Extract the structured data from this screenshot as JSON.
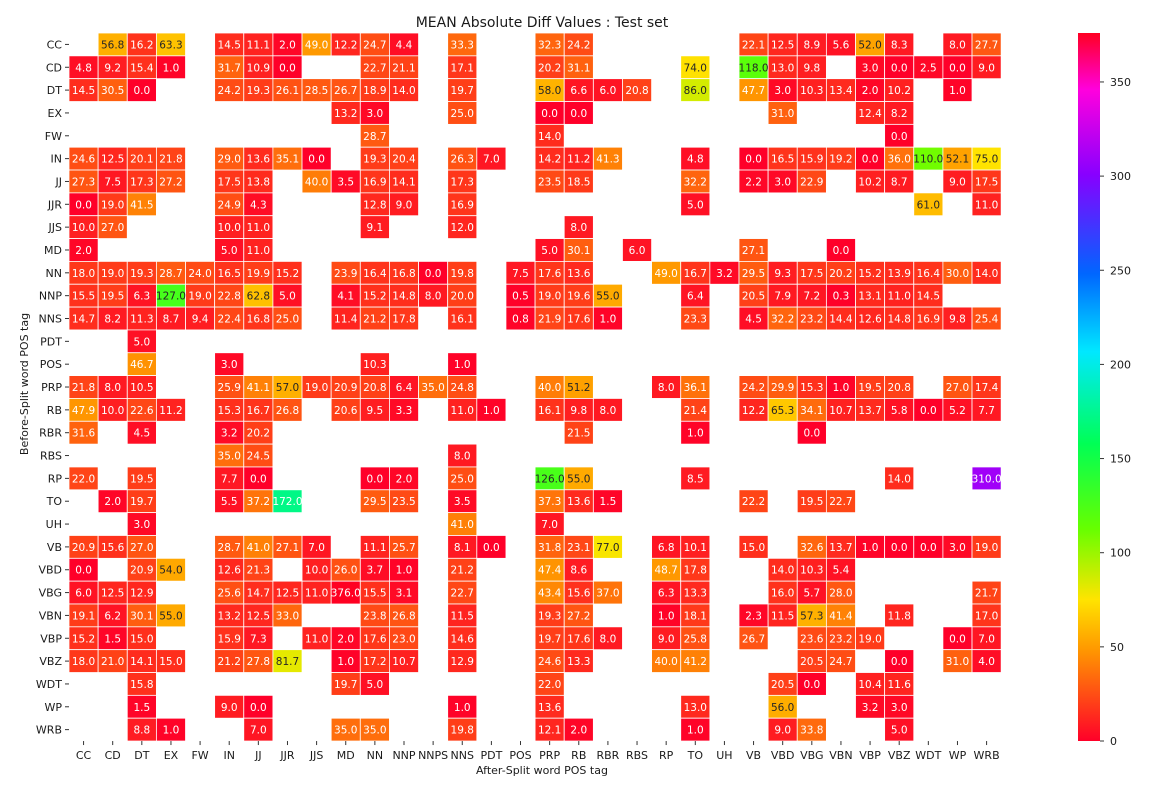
{
  "chart_data": {
    "type": "heatmap",
    "title": "MEAN Absolute Diff Values : Test set",
    "xlabel": "After-Split word POS tag",
    "ylabel": "Before-Split word POS tag",
    "x_categories": [
      "CC",
      "CD",
      "DT",
      "EX",
      "FW",
      "IN",
      "JJ",
      "JJR",
      "JJS",
      "MD",
      "NN",
      "NNP",
      "NNPS",
      "NNS",
      "PDT",
      "POS",
      "PRP",
      "RB",
      "RBR",
      "RBS",
      "RP",
      "TO",
      "UH",
      "VB",
      "VBD",
      "VBG",
      "VBN",
      "VBP",
      "VBZ",
      "WDT",
      "WP",
      "WRB"
    ],
    "y_categories": [
      "CC",
      "CD",
      "DT",
      "EX",
      "FW",
      "IN",
      "JJ",
      "JJR",
      "JJS",
      "MD",
      "NN",
      "NNP",
      "NNS",
      "PDT",
      "POS",
      "PRP",
      "RB",
      "RBR",
      "RBS",
      "RP",
      "TO",
      "UH",
      "VB",
      "VBD",
      "VBG",
      "VBN",
      "VBP",
      "VBZ",
      "WDT",
      "WP",
      "WRB"
    ],
    "colorbar": {
      "colormap": "gist_rainbow",
      "range": [
        0,
        375
      ],
      "ticks": [
        "0",
        "50",
        "100",
        "150",
        "200",
        "250",
        "300",
        "350"
      ]
    },
    "missing_cells": "blank",
    "values": [
      [
        null,
        56.8,
        16.2,
        63.3,
        null,
        14.5,
        11.1,
        2.0,
        49.0,
        12.2,
        24.7,
        4.4,
        null,
        33.3,
        null,
        null,
        32.3,
        24.2,
        null,
        null,
        null,
        null,
        null,
        22.1,
        12.5,
        8.9,
        5.6,
        52.0,
        8.3,
        null,
        8.0,
        27.7
      ],
      [
        4.8,
        9.2,
        15.4,
        1.0,
        null,
        31.7,
        10.9,
        0.0,
        null,
        null,
        22.7,
        21.1,
        null,
        17.1,
        null,
        null,
        20.2,
        31.1,
        null,
        null,
        null,
        74.0,
        null,
        118.0,
        13.0,
        9.8,
        null,
        3.0,
        0.0,
        2.5,
        0.0,
        9.0
      ],
      [
        14.5,
        30.5,
        0.0,
        null,
        null,
        24.2,
        19.3,
        26.1,
        28.5,
        26.7,
        18.9,
        14.0,
        null,
        19.7,
        null,
        null,
        58.0,
        6.6,
        6.0,
        20.8,
        null,
        86.0,
        null,
        47.7,
        3.0,
        10.3,
        13.4,
        2.0,
        10.2,
        null,
        1.0,
        null
      ],
      [
        null,
        null,
        null,
        null,
        null,
        null,
        null,
        null,
        null,
        13.2,
        3.0,
        null,
        null,
        25.0,
        null,
        null,
        0.0,
        0.0,
        null,
        null,
        null,
        null,
        null,
        null,
        31.0,
        null,
        null,
        12.4,
        8.2,
        null,
        null,
        null
      ],
      [
        null,
        null,
        null,
        null,
        null,
        null,
        null,
        null,
        null,
        null,
        28.7,
        null,
        null,
        null,
        null,
        null,
        14.0,
        null,
        null,
        null,
        null,
        null,
        null,
        null,
        null,
        null,
        null,
        null,
        0.0,
        null,
        null,
        null
      ],
      [
        24.6,
        12.5,
        20.1,
        21.8,
        null,
        29.0,
        13.6,
        35.1,
        0.0,
        null,
        19.3,
        20.4,
        null,
        26.3,
        7.0,
        null,
        14.2,
        11.2,
        41.3,
        null,
        null,
        4.8,
        null,
        0.0,
        16.5,
        15.9,
        19.2,
        0.0,
        36.0,
        110.0,
        52.1,
        75.0
      ],
      [
        27.3,
        7.5,
        17.3,
        27.2,
        null,
        17.5,
        13.8,
        null,
        40.0,
        3.5,
        16.9,
        14.1,
        null,
        17.3,
        null,
        null,
        23.5,
        18.5,
        null,
        null,
        null,
        32.2,
        null,
        2.2,
        3.0,
        22.9,
        null,
        10.2,
        8.7,
        null,
        9.0,
        17.5
      ],
      [
        0.0,
        19.0,
        41.5,
        null,
        null,
        24.9,
        4.3,
        null,
        null,
        null,
        12.8,
        9.0,
        null,
        16.9,
        null,
        null,
        null,
        null,
        null,
        null,
        null,
        5.0,
        null,
        null,
        null,
        null,
        null,
        null,
        null,
        61.0,
        null,
        11.0
      ],
      [
        10.0,
        27.0,
        null,
        null,
        null,
        10.0,
        11.0,
        null,
        null,
        null,
        9.1,
        null,
        null,
        12.0,
        null,
        null,
        null,
        8.0,
        null,
        null,
        null,
        null,
        null,
        null,
        null,
        null,
        null,
        null,
        null,
        null,
        null,
        null
      ],
      [
        2.0,
        null,
        null,
        null,
        null,
        5.0,
        11.0,
        null,
        null,
        null,
        null,
        null,
        null,
        null,
        null,
        null,
        5.0,
        30.1,
        null,
        6.0,
        null,
        null,
        null,
        27.1,
        null,
        null,
        0.0,
        null,
        null,
        null,
        null,
        null
      ],
      [
        18.0,
        19.0,
        19.3,
        28.7,
        24.0,
        16.5,
        19.9,
        15.2,
        null,
        23.9,
        16.4,
        16.8,
        0.0,
        19.8,
        null,
        7.5,
        17.6,
        13.6,
        null,
        null,
        49.0,
        16.7,
        3.2,
        29.5,
        9.3,
        17.5,
        20.2,
        15.2,
        13.9,
        16.4,
        30.0,
        14.0
      ],
      [
        15.5,
        19.5,
        6.3,
        127.0,
        19.0,
        22.8,
        62.8,
        5.0,
        null,
        4.1,
        15.2,
        14.8,
        8.0,
        20.0,
        null,
        0.5,
        19.0,
        19.6,
        55.0,
        null,
        null,
        6.4,
        null,
        20.5,
        7.9,
        7.2,
        0.3,
        13.1,
        11.0,
        14.5,
        null,
        null
      ],
      [
        14.7,
        8.2,
        11.3,
        8.7,
        9.4,
        22.4,
        16.8,
        25.0,
        null,
        11.4,
        21.2,
        17.8,
        null,
        16.1,
        null,
        0.8,
        21.9,
        17.6,
        1.0,
        null,
        null,
        23.3,
        null,
        4.5,
        32.2,
        23.2,
        14.4,
        12.6,
        14.8,
        16.9,
        9.8,
        25.4
      ],
      [
        null,
        null,
        5.0,
        null,
        null,
        null,
        null,
        null,
        null,
        null,
        null,
        null,
        null,
        null,
        null,
        null,
        null,
        null,
        null,
        null,
        null,
        null,
        null,
        null,
        null,
        null,
        null,
        null,
        null,
        null,
        null,
        null
      ],
      [
        null,
        null,
        46.7,
        null,
        null,
        3.0,
        null,
        null,
        null,
        null,
        10.3,
        null,
        null,
        1.0,
        null,
        null,
        null,
        null,
        null,
        null,
        null,
        null,
        null,
        null,
        null,
        null,
        null,
        null,
        null,
        null,
        null,
        null
      ],
      [
        21.8,
        8.0,
        10.5,
        null,
        null,
        25.9,
        41.1,
        57.0,
        19.0,
        20.9,
        20.8,
        6.4,
        35.0,
        24.8,
        null,
        null,
        40.0,
        51.2,
        null,
        null,
        8.0,
        36.1,
        null,
        24.2,
        29.9,
        15.3,
        1.0,
        19.5,
        20.8,
        null,
        27.0,
        17.4
      ],
      [
        47.9,
        10.0,
        22.6,
        11.2,
        null,
        15.3,
        16.7,
        26.8,
        null,
        20.6,
        9.5,
        3.3,
        null,
        11.0,
        1.0,
        null,
        16.1,
        9.8,
        8.0,
        null,
        null,
        21.4,
        null,
        12.2,
        65.3,
        34.1,
        10.7,
        13.7,
        5.8,
        0.0,
        5.2,
        7.7
      ],
      [
        31.6,
        null,
        4.5,
        null,
        null,
        3.2,
        20.2,
        null,
        null,
        null,
        null,
        null,
        null,
        null,
        null,
        null,
        null,
        21.5,
        null,
        null,
        null,
        1.0,
        null,
        null,
        null,
        0.0,
        null,
        null,
        null,
        null,
        null,
        null
      ],
      [
        null,
        null,
        null,
        null,
        null,
        35.0,
        24.5,
        null,
        null,
        null,
        null,
        null,
        null,
        8.0,
        null,
        null,
        null,
        null,
        null,
        null,
        null,
        null,
        null,
        null,
        null,
        null,
        null,
        null,
        null,
        null,
        null,
        null
      ],
      [
        22.0,
        null,
        19.5,
        null,
        null,
        7.7,
        0.0,
        null,
        null,
        null,
        0.0,
        2.0,
        null,
        25.0,
        null,
        null,
        126.0,
        55.0,
        null,
        null,
        null,
        8.5,
        null,
        null,
        null,
        null,
        null,
        null,
        14.0,
        null,
        null,
        310.0
      ],
      [
        null,
        2.0,
        19.7,
        null,
        null,
        5.5,
        37.2,
        172.0,
        null,
        null,
        29.5,
        23.5,
        null,
        3.5,
        null,
        null,
        37.3,
        13.6,
        1.5,
        null,
        null,
        null,
        null,
        22.2,
        null,
        19.5,
        22.7,
        null,
        null,
        null,
        null,
        null
      ],
      [
        null,
        null,
        3.0,
        null,
        null,
        null,
        null,
        null,
        null,
        null,
        null,
        null,
        null,
        41.0,
        null,
        null,
        7.0,
        null,
        null,
        null,
        null,
        null,
        null,
        null,
        null,
        null,
        null,
        null,
        null,
        null,
        null,
        null
      ],
      [
        20.9,
        15.6,
        27.0,
        null,
        null,
        28.7,
        41.0,
        27.1,
        7.0,
        null,
        11.1,
        25.7,
        null,
        8.1,
        0.0,
        null,
        31.8,
        23.1,
        77.0,
        null,
        6.8,
        10.1,
        null,
        15.0,
        null,
        32.6,
        13.7,
        1.0,
        0.0,
        0.0,
        3.0,
        19.0
      ],
      [
        0.0,
        null,
        20.9,
        54.0,
        null,
        12.6,
        21.3,
        null,
        10.0,
        26.0,
        3.7,
        1.0,
        null,
        21.2,
        null,
        null,
        47.4,
        8.6,
        null,
        null,
        48.7,
        17.8,
        null,
        null,
        14.0,
        10.3,
        5.4,
        null,
        null,
        null,
        null,
        null
      ],
      [
        6.0,
        12.5,
        12.9,
        null,
        null,
        25.6,
        14.7,
        12.5,
        11.0,
        376.0,
        15.5,
        3.1,
        null,
        22.7,
        null,
        null,
        43.4,
        15.6,
        37.0,
        null,
        6.3,
        13.3,
        null,
        null,
        16.0,
        5.7,
        28.0,
        null,
        null,
        null,
        null,
        21.7
      ],
      [
        19.1,
        6.2,
        30.1,
        55.0,
        null,
        13.2,
        12.5,
        33.0,
        null,
        null,
        23.8,
        26.8,
        null,
        11.5,
        null,
        null,
        19.3,
        27.2,
        null,
        null,
        1.0,
        18.1,
        null,
        2.3,
        11.5,
        57.3,
        41.4,
        null,
        11.8,
        null,
        null,
        17.0
      ],
      [
        15.2,
        1.5,
        15.0,
        null,
        null,
        15.9,
        7.3,
        null,
        11.0,
        2.0,
        17.6,
        23.0,
        null,
        14.6,
        null,
        null,
        19.7,
        17.6,
        8.0,
        null,
        9.0,
        25.8,
        null,
        26.7,
        null,
        23.6,
        23.2,
        19.0,
        null,
        null,
        0.0,
        7.0
      ],
      [
        18.0,
        21.0,
        14.1,
        15.0,
        null,
        21.2,
        27.8,
        81.7,
        null,
        1.0,
        17.2,
        10.7,
        null,
        12.9,
        null,
        null,
        24.6,
        13.3,
        null,
        null,
        40.0,
        41.2,
        null,
        null,
        null,
        20.5,
        24.7,
        null,
        0.0,
        null,
        31.0,
        4.0
      ],
      [
        null,
        null,
        15.8,
        null,
        null,
        null,
        null,
        null,
        null,
        19.7,
        5.0,
        null,
        null,
        null,
        null,
        null,
        22.0,
        null,
        null,
        null,
        null,
        null,
        null,
        null,
        20.5,
        0.0,
        null,
        10.4,
        11.6,
        null,
        null,
        null
      ],
      [
        null,
        null,
        1.5,
        null,
        null,
        9.0,
        0.0,
        null,
        null,
        null,
        null,
        null,
        null,
        1.0,
        null,
        null,
        13.6,
        null,
        null,
        null,
        null,
        13.0,
        null,
        null,
        56.0,
        null,
        null,
        3.2,
        3.0,
        null,
        null,
        null
      ],
      [
        null,
        null,
        8.8,
        1.0,
        null,
        null,
        7.0,
        null,
        null,
        35.0,
        35.0,
        null,
        null,
        19.8,
        null,
        null,
        12.1,
        2.0,
        null,
        null,
        null,
        1.0,
        null,
        null,
        9.0,
        33.8,
        null,
        null,
        5.0,
        null,
        null,
        null
      ]
    ]
  }
}
